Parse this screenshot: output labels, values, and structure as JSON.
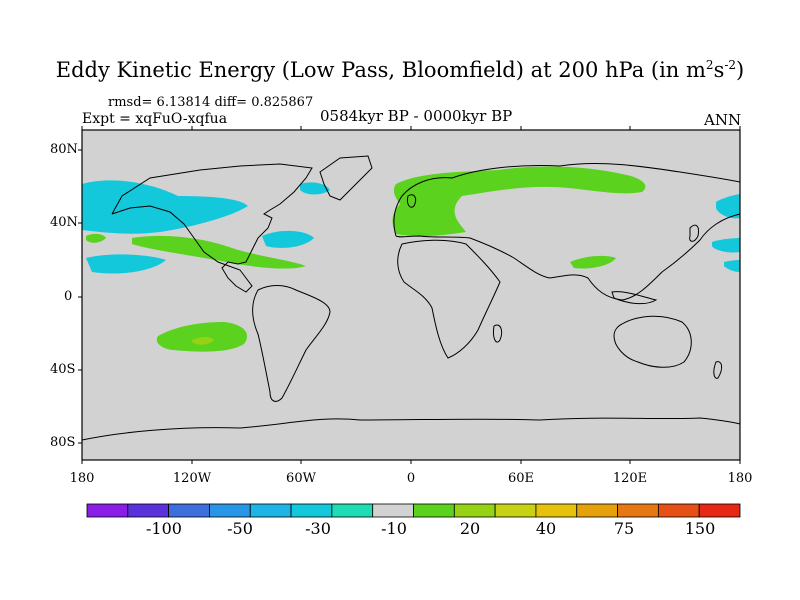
{
  "title": {
    "main": "Eddy Kinetic Energy (Low Pass, Bloomfield) at 200 hPa (in m",
    "sup1": "2",
    "mid": "s",
    "sup2": "-2",
    "end": ")"
  },
  "stats": "rmsd= 6.13814 diff= 0.825867",
  "expt": "Expt = xqFuO-xqfua",
  "period": "0584kyr BP - 0000kyr BP",
  "season": "ANN",
  "lat_labels": [
    "80N",
    "40N",
    "0",
    "40S",
    "80S"
  ],
  "lon_labels": [
    "180",
    "120W",
    "60W",
    "0",
    "60E",
    "120E",
    "180"
  ],
  "colorbar": {
    "colors": [
      "#8a1ee6",
      "#5a32dc",
      "#3c6edc",
      "#2896e6",
      "#1eb4e6",
      "#14c8dc",
      "#1edcb4",
      "#d2d2d2",
      "#5ad21e",
      "#96d214",
      "#c8d214",
      "#e6c30a",
      "#e6a00a",
      "#e67814",
      "#e65014",
      "#e62814"
    ],
    "labels": [
      "-100",
      "-50",
      "-30",
      "-10",
      "20",
      "40",
      "75",
      "150"
    ]
  },
  "colors": {
    "land_ocean": "#d2d2d2",
    "positive": "#5ad21e",
    "negative": "#14c8dc",
    "coast": "#000000"
  }
}
